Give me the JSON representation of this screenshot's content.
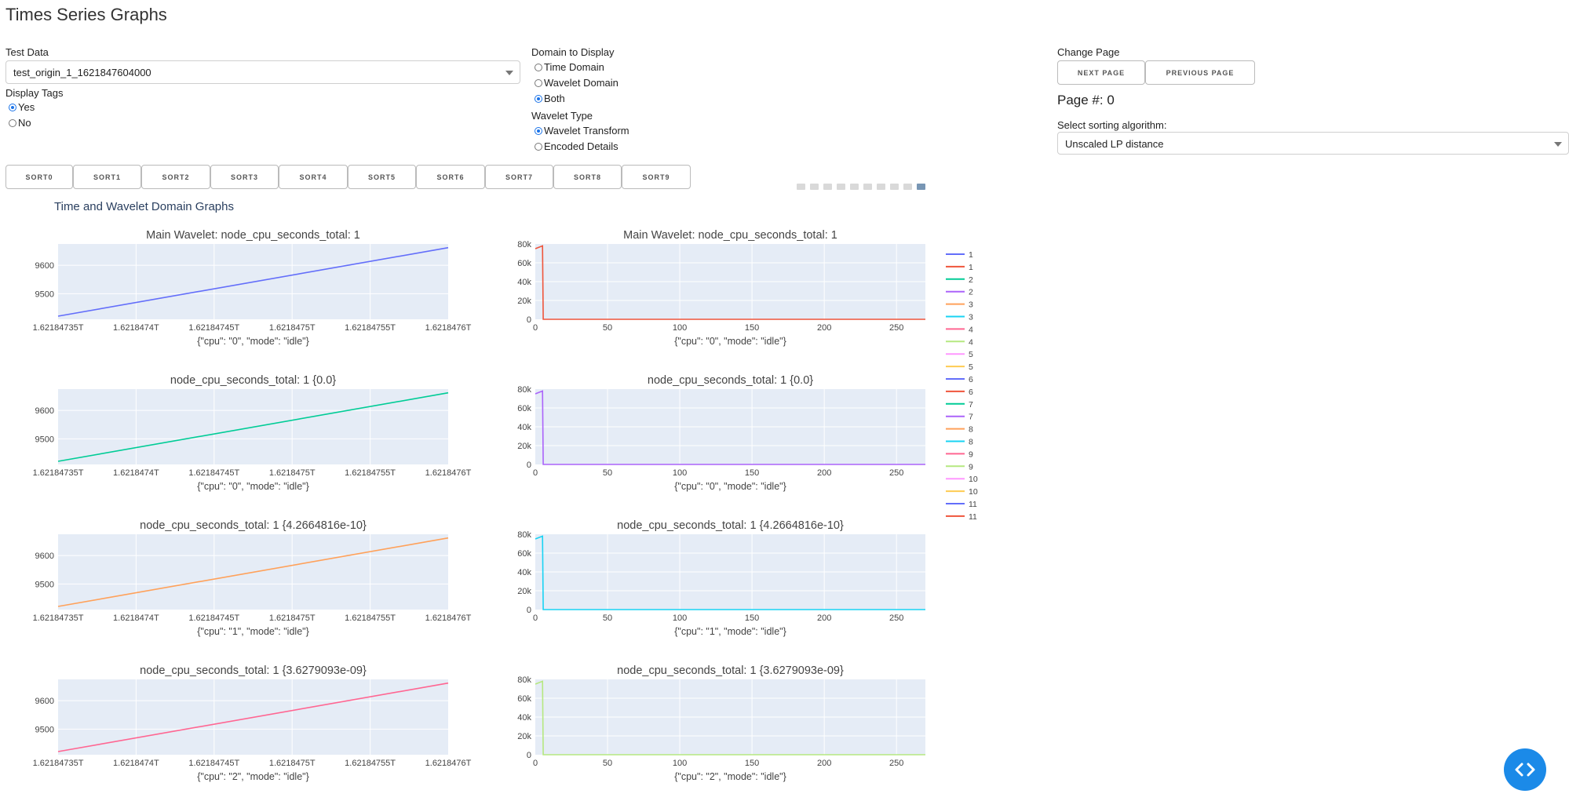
{
  "app_title": "Times Series Graphs",
  "test_data": {
    "label": "Test Data",
    "value": "test_origin_1_1621847604000"
  },
  "display_tags": {
    "label": "Display Tags",
    "options": [
      "Yes",
      "No"
    ],
    "selected": "Yes"
  },
  "domain": {
    "label": "Domain to Display",
    "options": [
      "Time Domain",
      "Wavelet Domain",
      "Both"
    ],
    "selected": "Both"
  },
  "wavelet_type": {
    "label": "Wavelet Type",
    "options": [
      "Wavelet Transform",
      "Encoded Details"
    ],
    "selected": "Wavelet Transform"
  },
  "change_page": {
    "label": "Change Page",
    "next": "NEXT PAGE",
    "previous": "PREVIOUS PAGE",
    "page_text": "Page #: 0"
  },
  "sorting": {
    "label": "Select sorting algorithm:",
    "value": "Unscaled LP distance"
  },
  "sort_buttons": [
    "SORT0",
    "SORT1",
    "SORT2",
    "SORT3",
    "SORT4",
    "SORT5",
    "SORT6",
    "SORT7",
    "SORT8",
    "SORT9"
  ],
  "graph_title": "Time and Wavelet Domain Graphs",
  "series_colors": [
    "#636efa",
    "#ef553b",
    "#00cc96",
    "#ab63fa",
    "#ffa15a",
    "#19d3f3",
    "#ff6692",
    "#b6e880",
    "#ff97ff",
    "#fecb52"
  ],
  "legend": [
    "1",
    "1",
    "2",
    "2",
    "3",
    "3",
    "4",
    "4",
    "5",
    "5",
    "6",
    "6",
    "7",
    "7",
    "8",
    "8",
    "9",
    "9",
    "10",
    "10",
    "11",
    "11"
  ],
  "chart_data": [
    {
      "type": "line",
      "title": "Main Wavelet: node_cpu_seconds_total: 1",
      "xlabel": "{\"cpu\": \"0\", \"mode\": \"idle\"}",
      "x_ticks": [
        "1.62184735T",
        "1.6218474T",
        "1.62184745T",
        "1.6218475T",
        "1.62184755T",
        "1.6218476T"
      ],
      "x": [
        1.62184735,
        1.6218476
      ],
      "y": [
        9421,
        9662
      ],
      "y_ticks": [
        "9500",
        "9600"
      ],
      "ylim": [
        9410,
        9675
      ],
      "color": "#636efa"
    },
    {
      "type": "line",
      "title": "Main Wavelet: node_cpu_seconds_total: 1",
      "xlabel": "{\"cpu\": \"0\", \"mode\": \"idle\"}",
      "x_ticks": [
        "0",
        "50",
        "100",
        "150",
        "200",
        "250"
      ],
      "x": [
        0,
        5,
        5.5,
        270
      ],
      "y": [
        75000,
        78000,
        0,
        0
      ],
      "y_ticks": [
        "0",
        "20k",
        "40k",
        "60k",
        "80k"
      ],
      "ylim": [
        0,
        80000
      ],
      "xlim": [
        0,
        270
      ],
      "color": "#ef553b"
    },
    {
      "type": "line",
      "title": "node_cpu_seconds_total: 1 {0.0}",
      "xlabel": "{\"cpu\": \"0\", \"mode\": \"idle\"}",
      "x_ticks": [
        "1.62184735T",
        "1.6218474T",
        "1.62184745T",
        "1.6218475T",
        "1.62184755T",
        "1.6218476T"
      ],
      "x": [
        1.62184735,
        1.6218476
      ],
      "y": [
        9421,
        9662
      ],
      "y_ticks": [
        "9500",
        "9600"
      ],
      "ylim": [
        9410,
        9675
      ],
      "color": "#00cc96"
    },
    {
      "type": "line",
      "title": "node_cpu_seconds_total: 1 {0.0}",
      "xlabel": "{\"cpu\": \"0\", \"mode\": \"idle\"}",
      "x_ticks": [
        "0",
        "50",
        "100",
        "150",
        "200",
        "250"
      ],
      "x": [
        0,
        5,
        5.5,
        270
      ],
      "y": [
        75000,
        78000,
        0,
        0
      ],
      "y_ticks": [
        "0",
        "20k",
        "40k",
        "60k",
        "80k"
      ],
      "ylim": [
        0,
        80000
      ],
      "xlim": [
        0,
        270
      ],
      "color": "#ab63fa"
    },
    {
      "type": "line",
      "title": "node_cpu_seconds_total: 1 {4.2664816e-10}",
      "xlabel": "{\"cpu\": \"1\", \"mode\": \"idle\"}",
      "x_ticks": [
        "1.62184735T",
        "1.6218474T",
        "1.62184745T",
        "1.6218475T",
        "1.62184755T",
        "1.6218476T"
      ],
      "x": [
        1.62184735,
        1.6218476
      ],
      "y": [
        9421,
        9662
      ],
      "y_ticks": [
        "9500",
        "9600"
      ],
      "ylim": [
        9410,
        9675
      ],
      "color": "#ffa15a"
    },
    {
      "type": "line",
      "title": "node_cpu_seconds_total: 1 {4.2664816e-10}",
      "xlabel": "{\"cpu\": \"1\", \"mode\": \"idle\"}",
      "x_ticks": [
        "0",
        "50",
        "100",
        "150",
        "200",
        "250"
      ],
      "x": [
        0,
        5,
        5.5,
        270
      ],
      "y": [
        75000,
        78000,
        0,
        0
      ],
      "y_ticks": [
        "0",
        "20k",
        "40k",
        "60k",
        "80k"
      ],
      "ylim": [
        0,
        80000
      ],
      "xlim": [
        0,
        270
      ],
      "color": "#19d3f3"
    },
    {
      "type": "line",
      "title": "node_cpu_seconds_total: 1 {3.6279093e-09}",
      "xlabel": "{\"cpu\": \"2\", \"mode\": \"idle\"}",
      "x_ticks": [
        "1.62184735T",
        "1.6218474T",
        "1.62184745T",
        "1.6218475T",
        "1.62184755T",
        "1.6218476T"
      ],
      "x": [
        1.62184735,
        1.6218476
      ],
      "y": [
        9421,
        9662
      ],
      "y_ticks": [
        "9500",
        "9600"
      ],
      "ylim": [
        9410,
        9675
      ],
      "color": "#ff6692"
    },
    {
      "type": "line",
      "title": "node_cpu_seconds_total: 1 {3.6279093e-09}",
      "xlabel": "{\"cpu\": \"2\", \"mode\": \"idle\"}",
      "x_ticks": [
        "0",
        "50",
        "100",
        "150",
        "200",
        "250"
      ],
      "x": [
        0,
        5,
        5.5,
        270
      ],
      "y": [
        75000,
        78000,
        0,
        0
      ],
      "y_ticks": [
        "0",
        "20k",
        "40k",
        "60k",
        "80k"
      ],
      "ylim": [
        0,
        80000
      ],
      "xlim": [
        0,
        270
      ],
      "color": "#b6e880"
    }
  ]
}
